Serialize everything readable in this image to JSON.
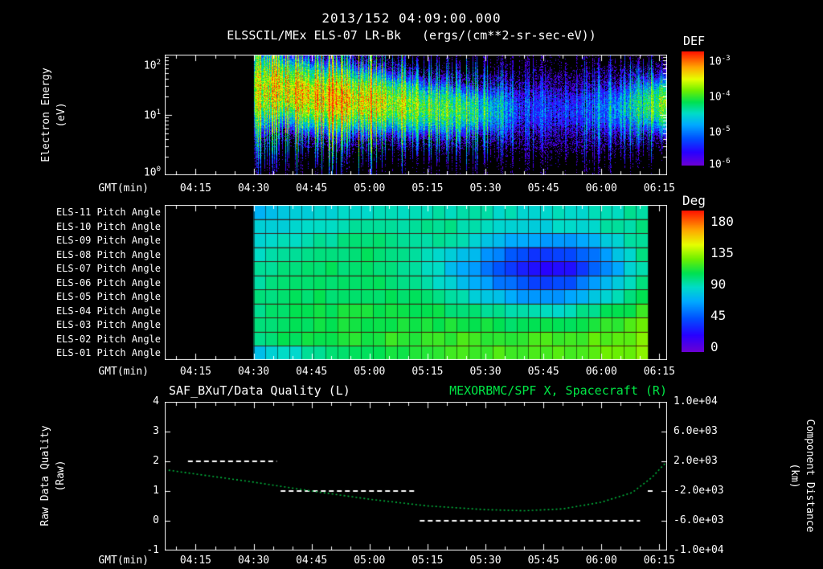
{
  "header": {
    "title": "2013/152 04:09:00.000",
    "instrument": "ELSSCIL/MEx ELS-07 LR-Bk",
    "units": "(ergs/(cm**2-sr-sec-eV))"
  },
  "time_axis": {
    "label": "GMT(min)",
    "start": "04:07",
    "end": "06:17",
    "ticks": [
      "04:15",
      "04:30",
      "04:45",
      "05:00",
      "05:15",
      "05:30",
      "05:45",
      "06:00",
      "06:15"
    ]
  },
  "colors": {
    "background": "#000000",
    "foreground": "#ffffff",
    "series_green": "#00e645",
    "curve_green": "#00b43c"
  },
  "chart_data": [
    {
      "id": "electron-energy-spectrogram",
      "type": "heatmap",
      "title": "ELSSCIL/MEx ELS-07 LR-Bk",
      "units": "ergs/(cm**2-sr-sec-eV)",
      "xlabel": "GMT(min)",
      "x_range": [
        "04:07",
        "06:17"
      ],
      "x_ticks": [
        "04:15",
        "04:30",
        "04:45",
        "05:00",
        "05:15",
        "05:30",
        "05:45",
        "06:00",
        "06:15"
      ],
      "ylabel": "Electron Energy\n(eV)",
      "y_scale": "log",
      "y_range_eV": [
        1,
        100
      ],
      "y_tick_labels": [
        "10^2",
        "10^1",
        "10^0"
      ],
      "colorbar": {
        "title": "DEF",
        "scale": "log",
        "range_min": 1e-06,
        "range_max": 0.001,
        "tick_labels": [
          "10^-3",
          "10^-4",
          "10^-5",
          "10^-6"
        ]
      },
      "data_start": "04:30",
      "keyframes": [
        {
          "t": "04:30",
          "peak_eV": 25,
          "log_flux": -3.9,
          "spread_dex": 0.65
        },
        {
          "t": "04:36",
          "peak_eV": 28,
          "log_flux": -3.7,
          "spread_dex": 0.5
        },
        {
          "t": "04:45",
          "peak_eV": 20,
          "log_flux": -3.55,
          "spread_dex": 0.47
        },
        {
          "t": "04:55",
          "peak_eV": 18,
          "log_flux": -3.55,
          "spread_dex": 0.45
        },
        {
          "t": "05:05",
          "peak_eV": 16,
          "log_flux": -3.85,
          "spread_dex": 0.42
        },
        {
          "t": "05:15",
          "peak_eV": 13,
          "log_flux": -4.1,
          "spread_dex": 0.4
        },
        {
          "t": "05:25",
          "peak_eV": 12,
          "log_flux": -4.35,
          "spread_dex": 0.38
        },
        {
          "t": "05:33",
          "peak_eV": 12,
          "log_flux": -4.8,
          "spread_dex": 0.4
        },
        {
          "t": "05:40",
          "peak_eV": 12,
          "log_flux": -5.5,
          "spread_dex": 0.5
        },
        {
          "t": "05:55",
          "peak_eV": 12,
          "log_flux": -5.4,
          "spread_dex": 0.5
        },
        {
          "t": "06:05",
          "peak_eV": 13,
          "log_flux": -4.9,
          "spread_dex": 0.45
        },
        {
          "t": "06:12",
          "peak_eV": 15,
          "log_flux": -4.3,
          "spread_dex": 0.4
        },
        {
          "t": "06:16",
          "peak_eV": 15,
          "log_flux": -3.8,
          "spread_dex": 0.42
        }
      ]
    },
    {
      "id": "pitch-angle-heatmap",
      "type": "heatmap",
      "row_labels": [
        "ELS-11 Pitch Angle",
        "ELS-10 Pitch Angle",
        "ELS-09 Pitch Angle",
        "ELS-08 Pitch Angle",
        "ELS-07 Pitch Angle",
        "ELS-06 Pitch Angle",
        "ELS-05 Pitch Angle",
        "ELS-04 Pitch Angle",
        "ELS-03 Pitch Angle",
        "ELS-02 Pitch Angle",
        "ELS-01 Pitch Angle"
      ],
      "xlabel": "GMT(min)",
      "x_range": [
        "04:07",
        "06:17"
      ],
      "x_ticks": [
        "04:15",
        "04:30",
        "04:45",
        "05:00",
        "05:15",
        "05:30",
        "05:45",
        "06:00",
        "06:15"
      ],
      "colorbar": {
        "title": "Deg",
        "range_min": 0,
        "range_max": 180,
        "tick_labels": [
          "180",
          "135",
          "90",
          "45",
          "0"
        ]
      },
      "data_start": "04:30",
      "data_end": "06:12",
      "time_cells": 33,
      "sample_start": "04:30",
      "sample_step_min": 5,
      "values_deg": [
        [
          70,
          72,
          74,
          76,
          78,
          80,
          82,
          84,
          85,
          86,
          86,
          86,
          85,
          84,
          83,
          82,
          82,
          83,
          85,
          88,
          90
        ],
        [
          75,
          78,
          80,
          83,
          85,
          87,
          89,
          90,
          91,
          91,
          90,
          88,
          85,
          82,
          80,
          79,
          80,
          82,
          86,
          90,
          93
        ],
        [
          80,
          83,
          86,
          89,
          91,
          93,
          94,
          94,
          93,
          91,
          87,
          82,
          75,
          68,
          62,
          60,
          62,
          68,
          78,
          88,
          95
        ],
        [
          85,
          88,
          91,
          93,
          95,
          96,
          96,
          95,
          92,
          87,
          80,
          70,
          58,
          45,
          38,
          35,
          38,
          48,
          65,
          82,
          95
        ],
        [
          88,
          91,
          94,
          96,
          97,
          98,
          97,
          95,
          91,
          84,
          74,
          62,
          48,
          35,
          28,
          25,
          28,
          40,
          58,
          78,
          95
        ],
        [
          90,
          93,
          95,
          97,
          98,
          99,
          98,
          96,
          93,
          88,
          80,
          70,
          58,
          48,
          42,
          40,
          44,
          55,
          70,
          85,
          98
        ],
        [
          92,
          95,
          97,
          98,
          99,
          100,
          100,
          99,
          97,
          94,
          89,
          82,
          74,
          67,
          62,
          60,
          64,
          72,
          83,
          93,
          102
        ],
        [
          94,
          96,
          98,
          100,
          101,
          102,
          102,
          102,
          101,
          100,
          98,
          95,
          91,
          87,
          84,
          83,
          86,
          91,
          98,
          104,
          110
        ],
        [
          95,
          98,
          100,
          102,
          103,
          104,
          105,
          105,
          105,
          105,
          104,
          103,
          101,
          100,
          99,
          99,
          101,
          104,
          108,
          112,
          116
        ],
        [
          93,
          97,
          100,
          103,
          105,
          106,
          107,
          108,
          109,
          110,
          110,
          110,
          110,
          110,
          110,
          110,
          111,
          113,
          115,
          118,
          120
        ],
        [
          72,
          78,
          84,
          90,
          95,
          99,
          102,
          105,
          107,
          109,
          110,
          111,
          112,
          113,
          113,
          114,
          115,
          116,
          118,
          120,
          122
        ]
      ]
    },
    {
      "id": "quality-and-position-lines",
      "type": "line",
      "xlabel": "GMT(min)",
      "x_range": [
        "04:07",
        "06:17"
      ],
      "x_ticks": [
        "04:15",
        "04:30",
        "04:45",
        "05:00",
        "05:15",
        "05:30",
        "05:45",
        "06:00",
        "06:15"
      ],
      "left_axis": {
        "label": "Raw Data Quality\n(Raw)",
        "range": [
          -1,
          4
        ],
        "tick_labels": [
          "4",
          "3",
          "2",
          "1",
          "0",
          "-1"
        ]
      },
      "right_axis": {
        "label": "Component Distance\n(km)",
        "range": [
          -10000,
          10000
        ],
        "tick_labels": [
          "1.0e+04",
          "6.0e+03",
          "2.0e+03",
          "-2.0e+03",
          "-6.0e+03",
          "-1.0e+04"
        ]
      },
      "left_series": {
        "name": "SAF_BXuT/Data Quality (L)",
        "color": "#ffffff",
        "style": "dashed",
        "segments": [
          {
            "start": "04:13",
            "end": "04:36",
            "value": 2
          },
          {
            "start": "04:37",
            "end": "05:12",
            "value": 1
          },
          {
            "start": "05:13",
            "end": "06:10",
            "value": 0
          },
          {
            "start": "06:12",
            "end": "06:14",
            "value": 1
          }
        ]
      },
      "right_series": {
        "name": "MEXORBMC/SPF X, Spacecraft (R)",
        "color": "#00b43c",
        "style": "dotted",
        "points": [
          {
            "t": "04:08",
            "km": 800
          },
          {
            "t": "04:30",
            "km": -800
          },
          {
            "t": "04:45",
            "km": -2000
          },
          {
            "t": "05:00",
            "km": -3100
          },
          {
            "t": "05:15",
            "km": -4000
          },
          {
            "t": "05:30",
            "km": -4500
          },
          {
            "t": "05:40",
            "km": -4650
          },
          {
            "t": "05:50",
            "km": -4400
          },
          {
            "t": "06:00",
            "km": -3500
          },
          {
            "t": "06:08",
            "km": -2200
          },
          {
            "t": "06:13",
            "km": -200
          },
          {
            "t": "06:17",
            "km": 2000
          }
        ]
      }
    }
  ]
}
